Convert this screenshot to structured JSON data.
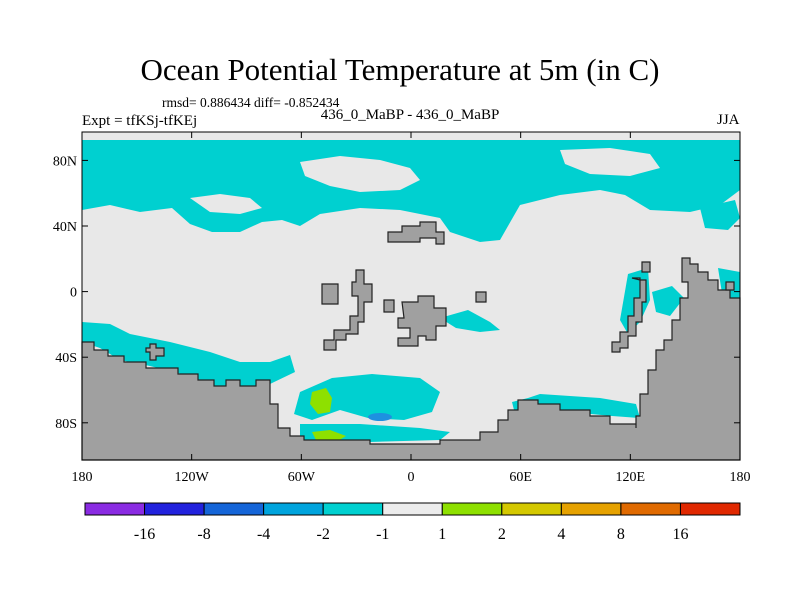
{
  "title": "Ocean Potential Temperature at 5m (in C)",
  "stats": "rmsd= 0.886434  diff= -0.852434",
  "expt": "Expt = tfKSj-tfKEj",
  "center_label": "436_0_MaBP - 436_0_MaBP",
  "season": "JJA",
  "lat_ticks": [
    {
      "value": 80,
      "label": "80N"
    },
    {
      "value": 40,
      "label": "40N"
    },
    {
      "value": 0,
      "label": "0"
    },
    {
      "value": -40,
      "label": "40S"
    },
    {
      "value": -80,
      "label": "80S"
    }
  ],
  "lon_ticks": [
    {
      "value": -180,
      "label": "180"
    },
    {
      "value": -120,
      "label": "120W"
    },
    {
      "value": -60,
      "label": "60W"
    },
    {
      "value": 0,
      "label": "0"
    },
    {
      "value": 60,
      "label": "60E"
    },
    {
      "value": 120,
      "label": "120E"
    },
    {
      "value": 180,
      "label": "180"
    }
  ],
  "colorbar": {
    "colors": [
      "#8a2be2",
      "#2222dd",
      "#1565d8",
      "#00a4dd",
      "#00d0d0",
      "#ececec",
      "#8ee000",
      "#d4c800",
      "#e6a200",
      "#e06a00",
      "#e02800"
    ],
    "labels": [
      "-16",
      "-8",
      "-4",
      "-2",
      "-1",
      "1",
      "2",
      "4",
      "8",
      "16"
    ]
  },
  "colors": {
    "land": "#a0a0a0",
    "coast": "#222222",
    "neutral": "#e8e8e8"
  }
}
